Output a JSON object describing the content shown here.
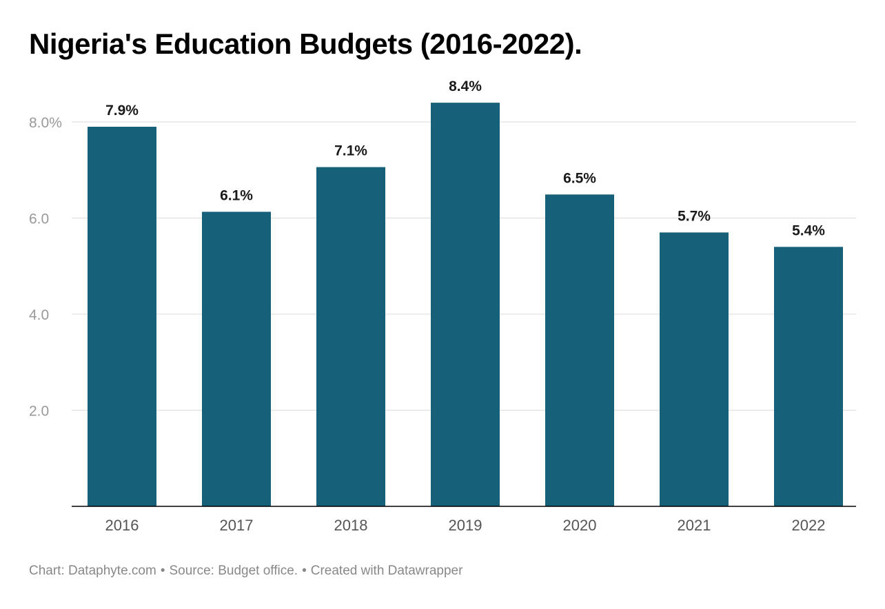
{
  "chart_data": {
    "type": "bar",
    "title": "Nigeria's Education Budgets (2016-2022).",
    "categories": [
      "2016",
      "2017",
      "2018",
      "2019",
      "2020",
      "2021",
      "2022"
    ],
    "values": [
      7.9,
      6.13,
      7.06,
      8.4,
      6.49,
      5.7,
      5.4
    ],
    "value_labels": [
      "7.9%",
      "6.1%",
      "7.1%",
      "8.4%",
      "6.5%",
      "5.7%",
      "5.4%"
    ],
    "yticks": [
      {
        "value": 2,
        "label": "2.0"
      },
      {
        "value": 4,
        "label": "4.0"
      },
      {
        "value": 6,
        "label": "6.0"
      },
      {
        "value": 8,
        "label": "8.0%"
      }
    ],
    "ylim": [
      0,
      8.4
    ],
    "xlabel": "",
    "ylabel": "",
    "grid": true,
    "bar_color": "#17607a",
    "gridline_color": "#e0e0e0",
    "axis_color": "#000000",
    "tick_label_color": "#999999",
    "category_label_color": "#555555",
    "value_label_color": "#1a1a1a"
  },
  "footer": {
    "chart_credit": "Chart: Dataphyte.com",
    "source": "Source: Budget office.",
    "created_with": "Created with Datawrapper",
    "separator": "•"
  }
}
